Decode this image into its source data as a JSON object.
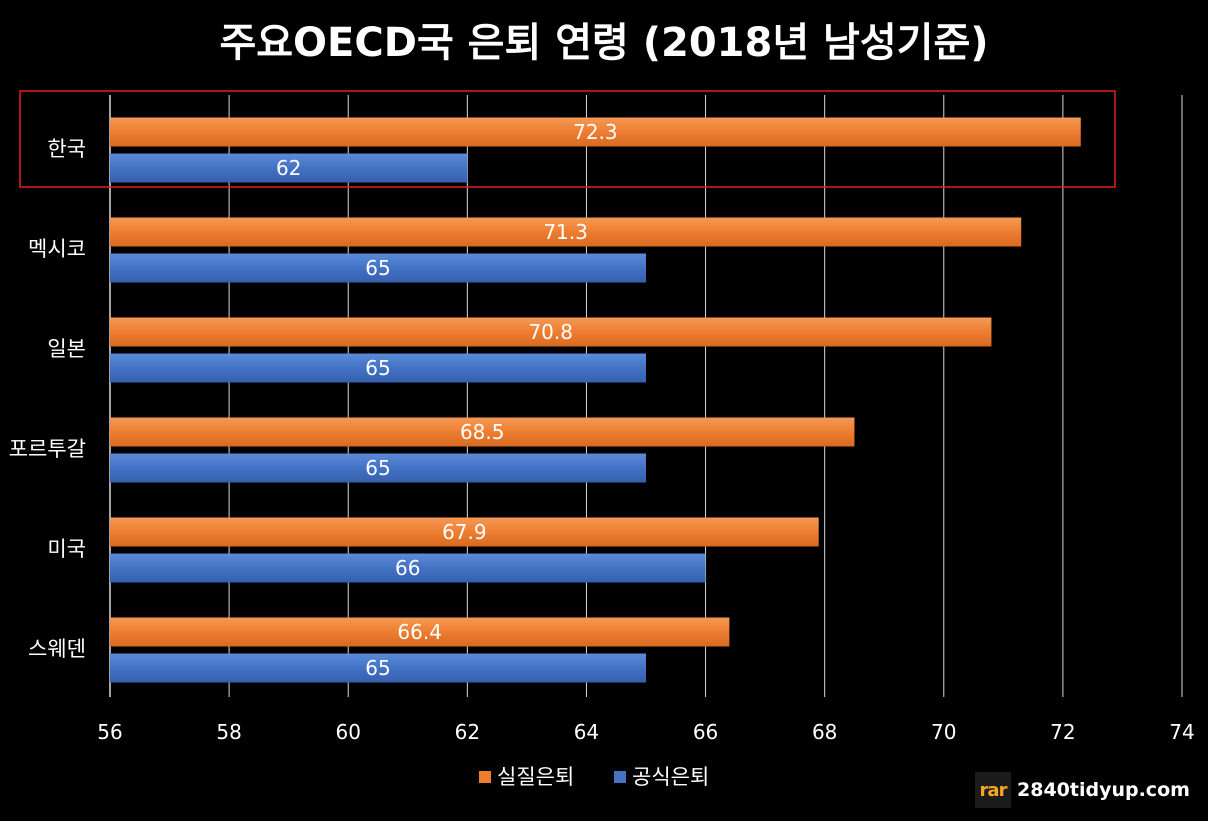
{
  "chart_data": {
    "type": "bar",
    "orientation": "horizontal",
    "title": "주요OECD국 은퇴 연령 (2018년 남성기준)",
    "categories": [
      "한국",
      "멕시코",
      "일본",
      "포르투갈",
      "미국",
      "스웨덴"
    ],
    "series": [
      {
        "name": "실질은퇴",
        "color": "#ED7D31",
        "values": [
          72.3,
          71.3,
          70.8,
          68.5,
          67.9,
          66.4
        ]
      },
      {
        "name": "공식은퇴",
        "color": "#4472C4",
        "values": [
          62,
          65,
          65,
          65,
          66,
          65
        ]
      }
    ],
    "xlim": [
      56,
      74
    ],
    "xticks": [
      "56",
      "58",
      "60",
      "62",
      "64",
      "66",
      "68",
      "70",
      "72",
      "74"
    ],
    "grid": true,
    "legend_position": "bottom",
    "highlight_category": "한국",
    "highlight_color": "#E02020"
  },
  "watermark": {
    "logo_text": "rar",
    "site": "2840tidyup.com"
  }
}
